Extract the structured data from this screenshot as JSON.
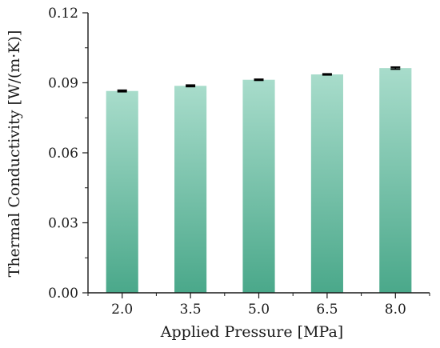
{
  "chart_data": {
    "type": "bar",
    "categories": [
      "2.0",
      "3.5",
      "5.0",
      "6.5",
      "8.0"
    ],
    "values": [
      0.0865,
      0.0887,
      0.0913,
      0.0936,
      0.0963
    ],
    "errors": [
      0.0003,
      0.0003,
      0.0002,
      0.0002,
      0.0004
    ],
    "xlabel": "Applied Pressure [MPa]",
    "ylabel": "Thermal Conductivity [W/(m·K)]",
    "ylim": [
      0,
      0.12
    ],
    "yticks": [
      "0.00",
      "0.03",
      "0.06",
      "0.09",
      "0.12"
    ],
    "grid": false,
    "colors": {
      "bar_top": "#a8dccb",
      "bar_bottom": "#4aa88a",
      "axis": "#1a1a1a",
      "error_bar": "#000000"
    }
  }
}
